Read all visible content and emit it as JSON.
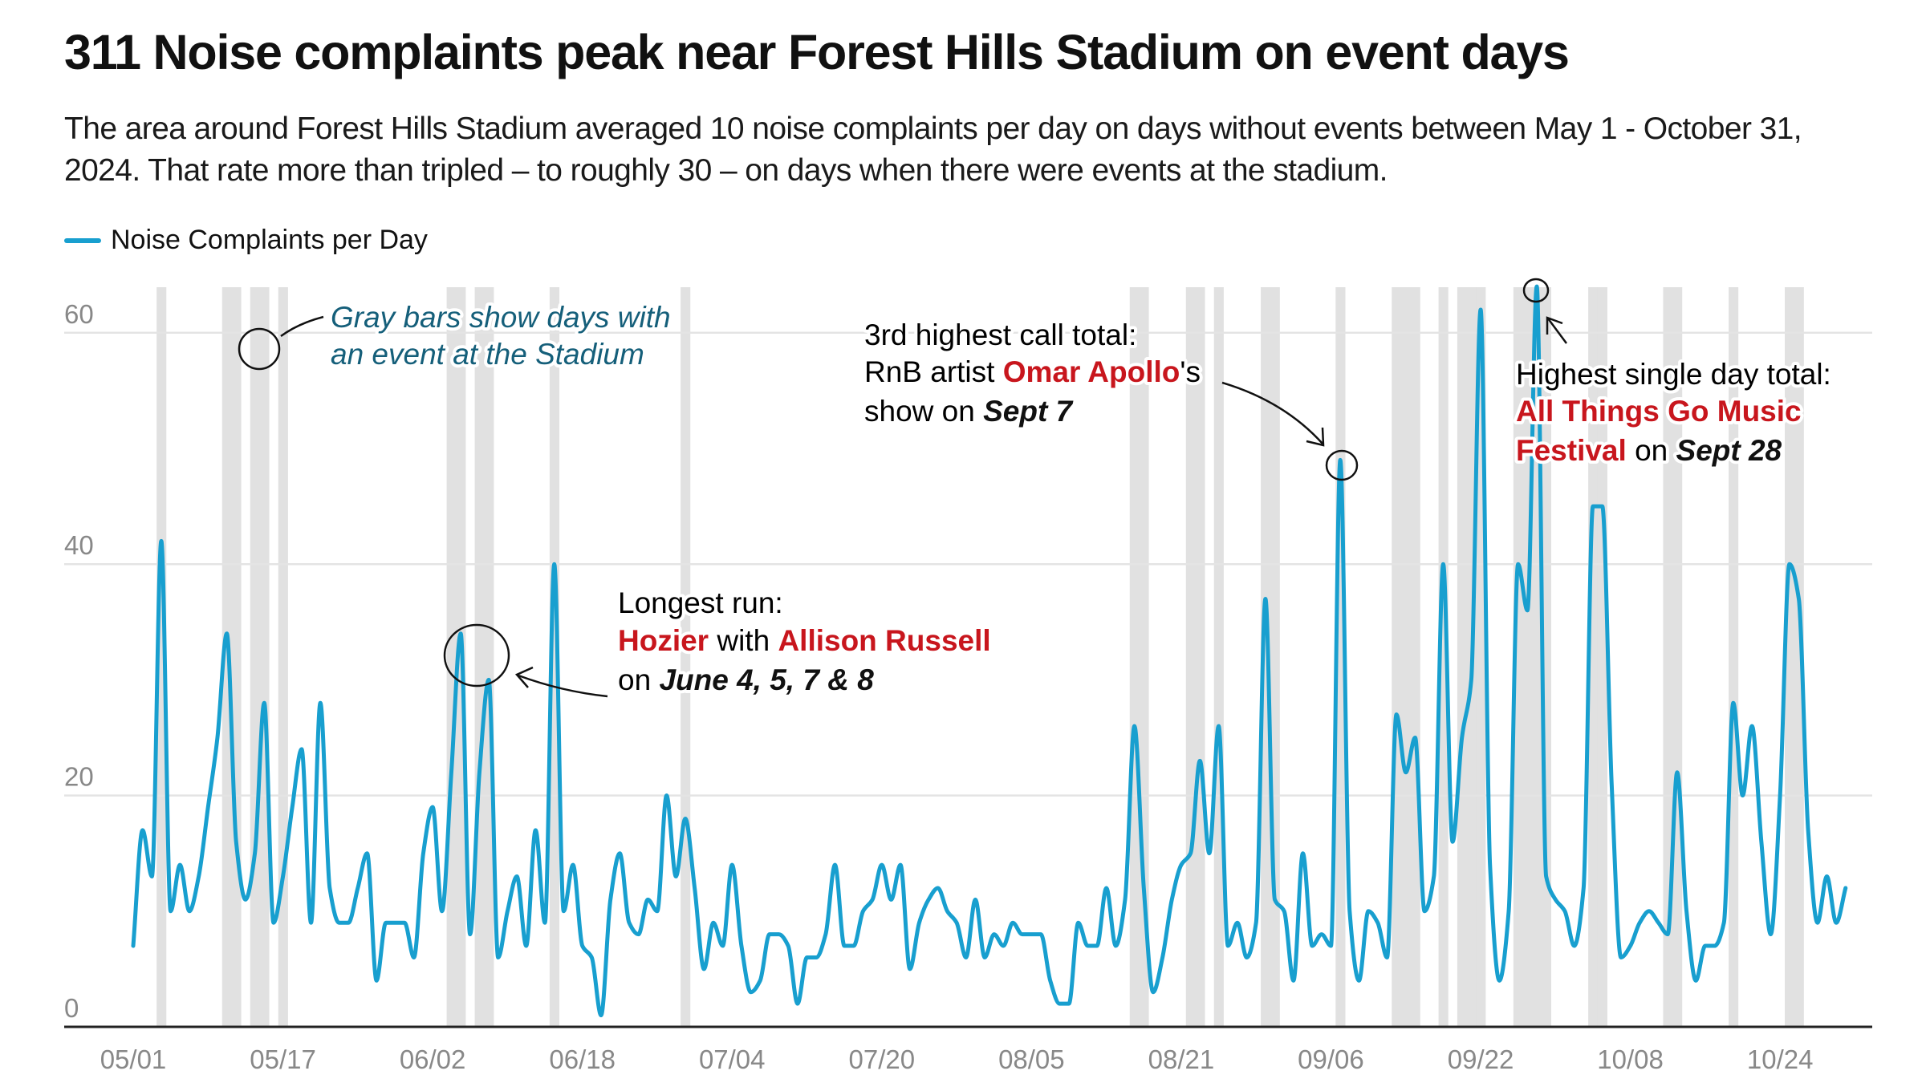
{
  "title": "311 Noise complaints peak near Forest Hills Stadium on event days",
  "subtitle": "The area around Forest Hills Stadium averaged 10 noise complaints per day on days without events between May 1 - October 31, 2024. That rate more than tripled – to roughly 30 – on days when there were events at the stadium.",
  "colors": {
    "line": "#189fcf",
    "event_bar": "#e1e1e1",
    "highlight": "#c8161d",
    "note": "#155f7a",
    "grid": "#e4e4e4",
    "axis": "#222222"
  },
  "chart_data": {
    "type": "line",
    "legend": {
      "position": "top-left",
      "label": "Noise Complaints per Day"
    },
    "series": [
      {
        "name": "Noise Complaints per Day",
        "x": [
          "05/01",
          "05/02",
          "05/03",
          "05/04",
          "05/05",
          "05/06",
          "05/07",
          "05/08",
          "05/09",
          "05/10",
          "05/11",
          "05/12",
          "05/13",
          "05/14",
          "05/15",
          "05/16",
          "05/17",
          "05/18",
          "05/19",
          "05/20",
          "05/21",
          "05/22",
          "05/23",
          "05/24",
          "05/25",
          "05/26",
          "05/27",
          "05/28",
          "05/29",
          "05/30",
          "05/31",
          "06/01",
          "06/02",
          "06/03",
          "06/04",
          "06/05",
          "06/06",
          "06/07",
          "06/08",
          "06/09",
          "06/10",
          "06/11",
          "06/12",
          "06/13",
          "06/14",
          "06/15",
          "06/16",
          "06/17",
          "06/18",
          "06/19",
          "06/20",
          "06/21",
          "06/22",
          "06/23",
          "06/24",
          "06/25",
          "06/26",
          "06/27",
          "06/28",
          "06/29",
          "06/30",
          "07/01",
          "07/02",
          "07/03",
          "07/04",
          "07/05",
          "07/06",
          "07/07",
          "07/08",
          "07/09",
          "07/10",
          "07/11",
          "07/12",
          "07/13",
          "07/14",
          "07/15",
          "07/16",
          "07/17",
          "07/18",
          "07/19",
          "07/20",
          "07/21",
          "07/22",
          "07/23",
          "07/24",
          "07/25",
          "07/26",
          "07/27",
          "07/28",
          "07/29",
          "07/30",
          "07/31",
          "08/01",
          "08/02",
          "08/03",
          "08/04",
          "08/05",
          "08/06",
          "08/07",
          "08/08",
          "08/09",
          "08/10",
          "08/11",
          "08/12",
          "08/13",
          "08/14",
          "08/15",
          "08/16",
          "08/17",
          "08/18",
          "08/19",
          "08/20",
          "08/21",
          "08/22",
          "08/23",
          "08/24",
          "08/25",
          "08/26",
          "08/27",
          "08/28",
          "08/29",
          "08/30",
          "08/31",
          "09/01",
          "09/02",
          "09/03",
          "09/04",
          "09/05",
          "09/06",
          "09/07",
          "09/08",
          "09/09",
          "09/10",
          "09/11",
          "09/12",
          "09/13",
          "09/14",
          "09/15",
          "09/16",
          "09/17",
          "09/18",
          "09/19",
          "09/20",
          "09/21",
          "09/22",
          "09/23",
          "09/24",
          "09/25",
          "09/26",
          "09/27",
          "09/28",
          "09/29",
          "09/30",
          "10/01",
          "10/02",
          "10/03",
          "10/04",
          "10/05",
          "10/06",
          "10/07",
          "10/08",
          "10/09",
          "10/10",
          "10/11",
          "10/12",
          "10/13",
          "10/14",
          "10/15",
          "10/16",
          "10/17",
          "10/18",
          "10/19",
          "10/20",
          "10/21",
          "10/22",
          "10/23",
          "10/24",
          "10/25",
          "10/26",
          "10/27",
          "10/28",
          "10/29",
          "10/30",
          "10/31"
        ],
        "values": [
          7,
          17,
          13,
          42,
          10,
          14,
          10,
          13,
          19,
          25,
          34,
          16,
          11,
          15,
          28,
          9,
          13,
          19,
          24,
          9,
          28,
          12,
          9,
          9,
          12,
          15,
          4,
          9,
          9,
          9,
          6,
          15,
          19,
          10,
          22,
          34,
          8,
          22,
          30,
          6,
          10,
          13,
          7,
          17,
          9,
          40,
          10,
          14,
          7,
          6,
          1,
          11,
          15,
          9,
          8,
          11,
          10,
          20,
          13,
          18,
          12,
          5,
          9,
          7,
          14,
          7,
          3,
          4,
          8,
          8,
          7,
          2,
          6,
          6,
          8,
          14,
          7,
          7,
          10,
          11,
          14,
          11,
          14,
          5,
          9,
          11,
          12,
          10,
          9,
          6,
          11,
          6,
          8,
          7,
          9,
          8,
          8,
          8,
          4,
          2,
          2,
          9,
          7,
          7,
          12,
          7,
          11,
          26,
          12,
          3,
          6,
          11,
          14,
          15,
          23,
          15,
          26,
          7,
          9,
          6,
          9,
          37,
          11,
          10,
          4,
          15,
          7,
          8,
          7,
          49,
          10,
          4,
          10,
          9,
          6,
          27,
          22,
          25,
          10,
          13,
          40,
          16,
          25,
          30,
          62,
          14,
          4,
          10,
          40,
          36,
          64,
          13,
          11,
          10,
          7,
          12,
          45,
          45,
          21,
          6,
          7,
          9,
          10,
          9,
          8,
          22,
          10,
          4,
          7,
          7,
          9,
          28,
          20,
          26,
          16,
          8,
          20,
          40,
          37,
          17,
          9,
          13,
          9,
          12
        ]
      }
    ],
    "event_days": [
      "05/04",
      "05/11",
      "05/12",
      "05/14",
      "05/15",
      "05/17",
      "06/04",
      "06/05",
      "06/07",
      "06/08",
      "06/15",
      "06/29",
      "08/16",
      "08/17",
      "08/22",
      "08/23",
      "08/25",
      "08/30",
      "08/31",
      "09/07",
      "09/13",
      "09/14",
      "09/15",
      "09/18",
      "09/20",
      "09/21",
      "09/22",
      "09/26",
      "09/27",
      "09/28",
      "09/29",
      "10/04",
      "10/05",
      "10/12",
      "10/13",
      "10/19",
      "10/25",
      "10/26"
    ],
    "x_ticks": [
      "05/01",
      "05/17",
      "06/02",
      "06/18",
      "07/04",
      "07/20",
      "08/05",
      "08/21",
      "09/06",
      "09/22",
      "10/08",
      "10/24"
    ],
    "y_ticks": [
      0,
      20,
      40,
      60
    ],
    "ylim": [
      0,
      65
    ],
    "grid": "horizontal",
    "xlabel": "",
    "ylabel": ""
  },
  "annotations": {
    "gray_bars": {
      "line1": "Gray bars show days with",
      "line2": "an event at the Stadium"
    },
    "hozier": {
      "l1": "Longest run:",
      "hozier": "Hozier",
      "with": " with ",
      "russell": "Allison Russell",
      "on": "on ",
      "dates": "June 4, 5, 7 & 8"
    },
    "apollo": {
      "l1": "3rd highest call total:",
      "pre": "RnB artist ",
      "artist": "Omar Apollo",
      "post": "'s",
      "show": "show on ",
      "date": "Sept 7"
    },
    "atgm": {
      "l1": "Highest single day total:",
      "l2": "All Things Go Music",
      "fest": "Festival",
      "on": " on ",
      "date": "Sept 28"
    }
  }
}
